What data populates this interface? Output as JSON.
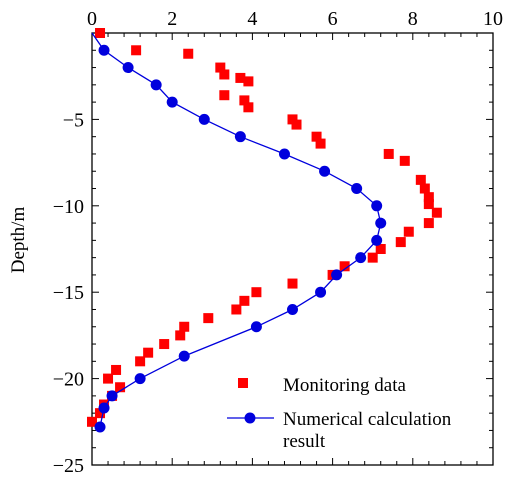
{
  "chart_data": {
    "type": "scatter",
    "ylabel": "Depth/m",
    "xlim": [
      0,
      10
    ],
    "ylim": [
      -25,
      0
    ],
    "x_ticks": [
      "0",
      "2",
      "4",
      "6",
      "8",
      "10"
    ],
    "y_ticks": [
      "−5",
      "−10",
      "−15",
      "−20",
      "−25"
    ],
    "grid": false,
    "legend_position": "bottom-right",
    "series": [
      {
        "name": "Monitoring data",
        "marker": "square",
        "color": "#ff0000",
        "points": [
          [
            0.2,
            0.0
          ],
          [
            1.1,
            -1.0
          ],
          [
            2.4,
            -1.2
          ],
          [
            3.2,
            -2.0
          ],
          [
            3.3,
            -2.4
          ],
          [
            3.7,
            -2.6
          ],
          [
            3.9,
            -2.8
          ],
          [
            3.3,
            -3.6
          ],
          [
            3.8,
            -3.9
          ],
          [
            3.9,
            -4.3
          ],
          [
            5.0,
            -5.0
          ],
          [
            5.1,
            -5.3
          ],
          [
            5.6,
            -6.0
          ],
          [
            5.7,
            -6.4
          ],
          [
            7.4,
            -7.0
          ],
          [
            7.8,
            -7.4
          ],
          [
            8.2,
            -8.5
          ],
          [
            8.3,
            -9.0
          ],
          [
            8.4,
            -9.5
          ],
          [
            8.4,
            -9.9
          ],
          [
            8.6,
            -10.4
          ],
          [
            8.4,
            -11.0
          ],
          [
            7.9,
            -11.5
          ],
          [
            7.7,
            -12.1
          ],
          [
            7.2,
            -12.5
          ],
          [
            7.0,
            -13.0
          ],
          [
            6.3,
            -13.5
          ],
          [
            6.0,
            -14.0
          ],
          [
            5.0,
            -14.5
          ],
          [
            4.1,
            -15.0
          ],
          [
            3.8,
            -15.5
          ],
          [
            3.6,
            -16.0
          ],
          [
            2.9,
            -16.5
          ],
          [
            2.3,
            -17.0
          ],
          [
            2.2,
            -17.5
          ],
          [
            1.8,
            -18.0
          ],
          [
            1.4,
            -18.5
          ],
          [
            1.2,
            -19.0
          ],
          [
            0.6,
            -19.5
          ],
          [
            0.4,
            -20.0
          ],
          [
            0.7,
            -20.5
          ],
          [
            0.5,
            -21.0
          ],
          [
            0.3,
            -21.5
          ],
          [
            0.2,
            -22.0
          ],
          [
            0.0,
            -22.5
          ]
        ]
      },
      {
        "name": "Numerical calculation result",
        "marker": "circle",
        "color": "#0000dd",
        "line": true,
        "points": [
          [
            0.0,
            0.0
          ],
          [
            0.3,
            -1.0
          ],
          [
            0.9,
            -2.0
          ],
          [
            1.6,
            -3.0
          ],
          [
            2.0,
            -4.0
          ],
          [
            2.8,
            -5.0
          ],
          [
            3.7,
            -6.0
          ],
          [
            4.8,
            -7.0
          ],
          [
            5.8,
            -8.0
          ],
          [
            6.6,
            -9.0
          ],
          [
            7.1,
            -10.0
          ],
          [
            7.2,
            -11.0
          ],
          [
            7.1,
            -12.0
          ],
          [
            6.7,
            -13.0
          ],
          [
            6.1,
            -14.0
          ],
          [
            5.7,
            -15.0
          ],
          [
            5.0,
            -16.0
          ],
          [
            4.1,
            -17.0
          ],
          [
            2.3,
            -18.7
          ],
          [
            1.2,
            -20.0
          ],
          [
            0.5,
            -21.0
          ],
          [
            0.3,
            -21.7
          ],
          [
            0.2,
            -22.8
          ]
        ]
      }
    ]
  },
  "legend": {
    "monitoring_label": "Monitoring data",
    "numerical_label_line1": "Numerical calculation",
    "numerical_label_line2": "result"
  }
}
